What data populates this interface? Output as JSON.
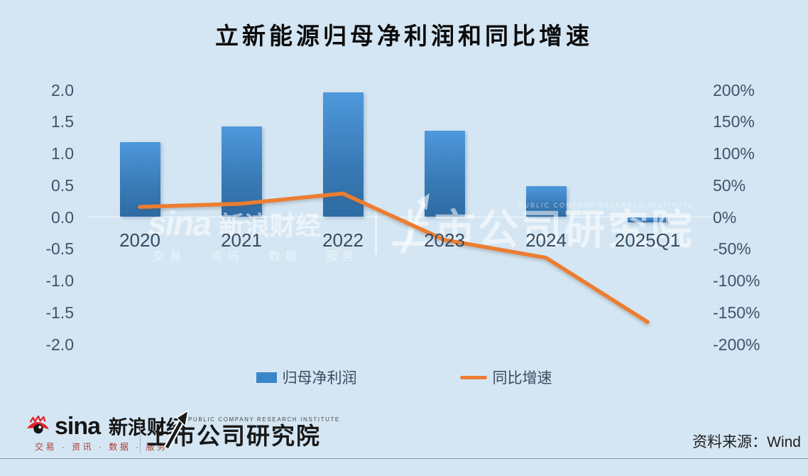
{
  "title": "立新能源归母净利润和同比增速",
  "chart_data": {
    "type": "bar+line",
    "title": "立新能源归母净利润和同比增速",
    "categories": [
      "2020",
      "2021",
      "2022",
      "2023",
      "2024",
      "2025Q1"
    ],
    "series": [
      {
        "name": "归母净利润",
        "type": "bar",
        "axis": "left",
        "values": [
          1.18,
          1.43,
          1.96,
          1.36,
          0.49,
          -0.08
        ]
      },
      {
        "name": "同比增速",
        "type": "line",
        "axis": "right",
        "unit": "%",
        "values": [
          16,
          21,
          37,
          -36,
          -64,
          -165
        ]
      }
    ],
    "left_axis": {
      "min": -2,
      "max": 2,
      "ticks": [
        "2.0",
        "1.5",
        "1.0",
        "0.5",
        "0.0",
        "-0.5",
        "-1.0",
        "-1.5",
        "-2.0"
      ]
    },
    "right_axis": {
      "min": -200,
      "max": 200,
      "ticks": [
        "200%",
        "150%",
        "100%",
        "50%",
        "0%",
        "-50%",
        "-100%",
        "-150%",
        "-200%"
      ]
    },
    "legend_position": "bottom",
    "grid": "zero-line-only",
    "colors": {
      "background": "#d4e6f3",
      "bar_top": "#4e98dc",
      "bar_bottom": "#2e6ba4",
      "legend_swatch": "#3a86c8",
      "line": "#ed7d31",
      "tick_text": "#42526b",
      "xlabel_text": "#3a4b61",
      "title_text": "#0b0b0b"
    }
  },
  "legend": {
    "bar_label": "归母净利润",
    "line_label": "同比增速"
  },
  "watermark": {
    "sina_text": "sina",
    "brand": "新浪财经",
    "tagline": "交易 · 资讯 · 数据 · 服务",
    "institute_en": "PUBLIC COMPANY RESEARCH INSTITUTE",
    "institute": "上市公司研究院"
  },
  "footer": {
    "sina_text": "sina",
    "brand": "新浪财经",
    "tagline": "交易 · 资讯 · 数据 · 服务",
    "institute_en": "PUBLIC COMPANY RESEARCH INSTITUTE",
    "institute": "上市公司研究院",
    "source": "资料来源：Wind"
  }
}
